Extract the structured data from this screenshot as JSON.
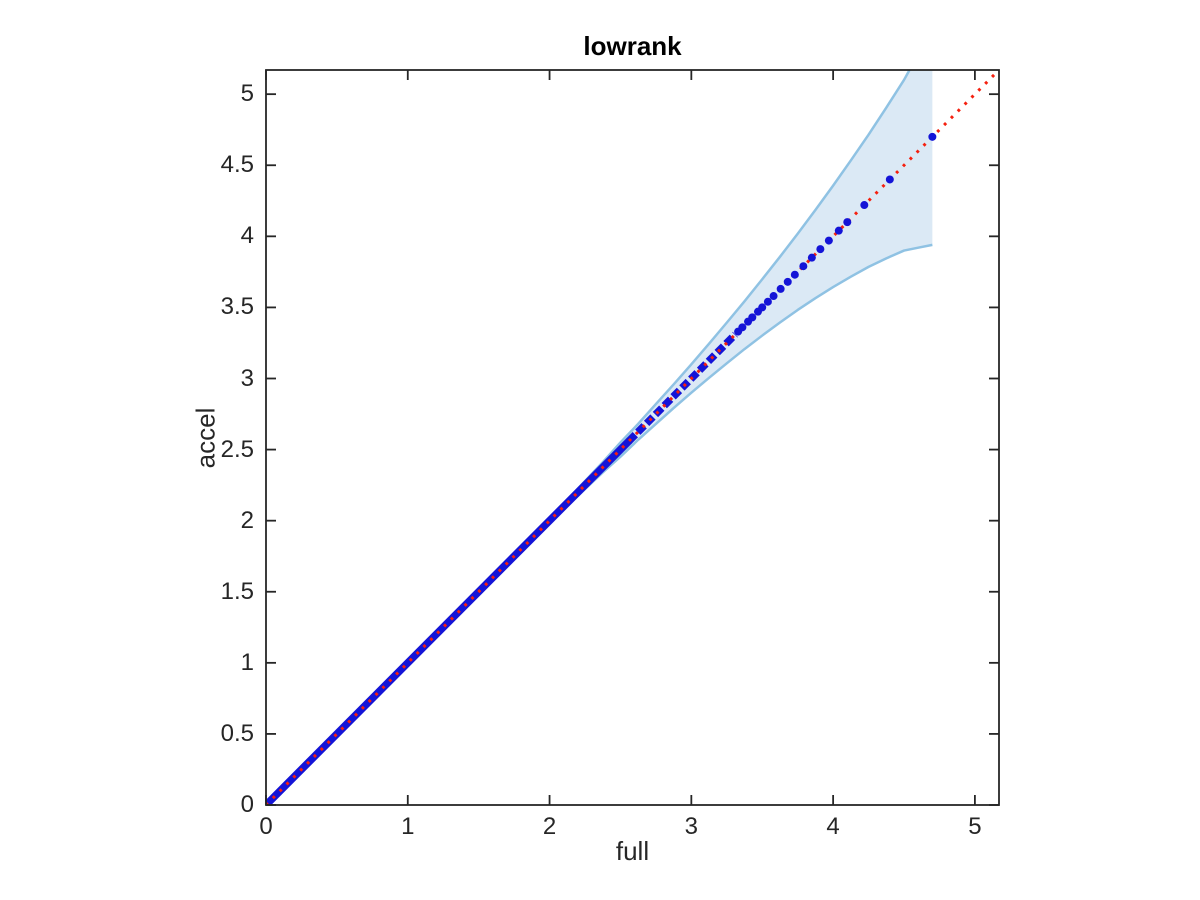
{
  "figure": {
    "background": "#ffffff",
    "axis_color": "#262626",
    "tick_direction": "in",
    "box": true
  },
  "chart_data": {
    "type": "scatter",
    "title": "lowrank",
    "xlabel": "full",
    "ylabel": "accel",
    "xlim": [
      0,
      5.17
    ],
    "ylim": [
      0,
      5.17
    ],
    "grid": false,
    "legend": null,
    "xticks": [
      0,
      1,
      2,
      3,
      4,
      5
    ],
    "xtick_labels": [
      "0",
      "1",
      "2",
      "3",
      "4",
      "5"
    ],
    "yticks": [
      0,
      0.5,
      1,
      1.5,
      2,
      2.5,
      3,
      3.5,
      4,
      4.5,
      5
    ],
    "ytick_labels": [
      "0",
      "0.5",
      "1",
      "1.5",
      "2",
      "2.5",
      "3",
      "3.5",
      "4",
      "4.5",
      "5"
    ],
    "identity_line": {
      "name": "identity-reference-line",
      "style": "dotted",
      "color": "#F5200F",
      "x": [
        0,
        5.17
      ],
      "y": [
        0,
        5.17
      ]
    },
    "scatter_series": {
      "name": "accel-vs-full-points",
      "color": "#1414D7",
      "marker": "dot",
      "on_diagonal": true,
      "dense_run": {
        "from": 0,
        "to": 2.56
      },
      "merged_dots": {
        "from": 2.56,
        "to": 3.31
      },
      "sparse_x": [
        3.33,
        3.36,
        3.4,
        3.43,
        3.47,
        3.5,
        3.54,
        3.58,
        3.63,
        3.68,
        3.73,
        3.79,
        3.85,
        3.91,
        3.97,
        4.04,
        4.1,
        4.22,
        4.4,
        4.7
      ]
    },
    "band": {
      "name": "confidence-band",
      "fill": "#DBE9F5",
      "edge": "#8FC2E3",
      "x": [
        0,
        0.5,
        1,
        1.25,
        1.5,
        1.75,
        2,
        2.125,
        2.25,
        2.375,
        2.5,
        2.625,
        2.75,
        2.875,
        3,
        3.125,
        3.25,
        3.375,
        3.5,
        3.625,
        3.75,
        3.875,
        4,
        4.125,
        4.25,
        4.375,
        4.5,
        4.6,
        4.7
      ],
      "lower": [
        0,
        0.4998,
        0.9989,
        1.247,
        1.4945,
        1.74,
        1.983,
        2.103,
        2.222,
        2.339,
        2.45,
        2.569,
        2.68,
        2.792,
        2.9,
        3.005,
        3.107,
        3.207,
        3.302,
        3.394,
        3.482,
        3.565,
        3.643,
        3.716,
        3.785,
        3.845,
        3.9,
        3.92,
        3.94
      ],
      "upper": [
        0,
        0.5002,
        1.0011,
        1.253,
        1.5055,
        1.76,
        2.017,
        2.147,
        2.278,
        2.411,
        2.55,
        2.681,
        2.82,
        2.958,
        3.1,
        3.245,
        3.393,
        3.543,
        3.698,
        3.856,
        4.018,
        4.185,
        4.357,
        4.534,
        4.715,
        4.905,
        5.1,
        5.28,
        5.46
      ]
    }
  }
}
